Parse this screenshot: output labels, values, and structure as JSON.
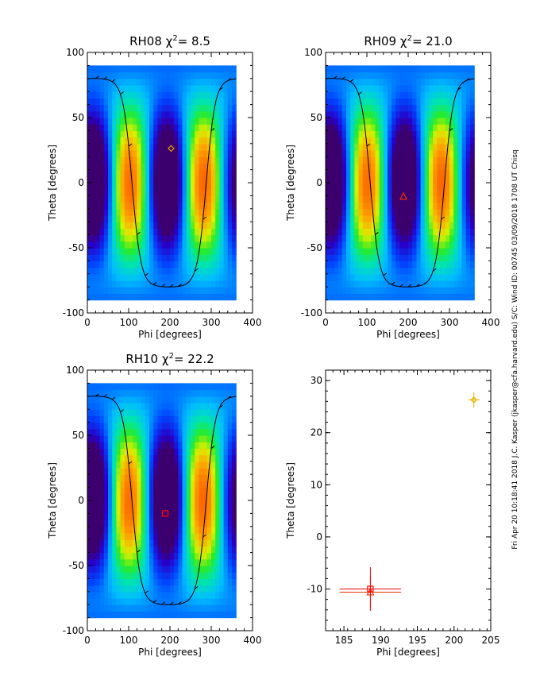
{
  "footer_text": "Fri Apr 20 10:18:41 2018  J.C. Kasper (jkasper@cfa.harvard.edu)   S/C: Wind ID: 00745 03/09/2018  1708 UT Chisq",
  "chart_data": [
    {
      "type": "heatmap",
      "title_name": "RH08",
      "chi_symbol": "χ",
      "chi_sup": "2",
      "chi_value": "=  8.5",
      "xlabel": "Phi [degrees]",
      "ylabel": "Theta [degrees]",
      "xlim": [
        0,
        400
      ],
      "ylim": [
        -100,
        100
      ],
      "xticks": [
        "0",
        "100",
        "200",
        "300",
        "400"
      ],
      "yticks": [
        "-100",
        "-50",
        "0",
        "50",
        "100"
      ],
      "map_phi_range": [
        0,
        360
      ],
      "map_theta_range": [
        -90,
        90
      ],
      "colorscale": "rainbow (blue-green-yellow-orange)",
      "curve_phase": 18,
      "field_phase": 12,
      "best_fit": {
        "phi": 202.8,
        "theta": 26.3,
        "marker": "diamond",
        "color": "#e8a000"
      }
    },
    {
      "type": "heatmap",
      "title_name": "RH09",
      "chi_symbol": "χ",
      "chi_sup": "2",
      "chi_value": "= 21.0",
      "xlabel": "Phi [degrees]",
      "ylabel": "Theta [degrees]",
      "xlim": [
        0,
        400
      ],
      "ylim": [
        -100,
        100
      ],
      "xticks": [
        "0",
        "100",
        "200",
        "300",
        "400"
      ],
      "yticks": [
        "-100",
        "-50",
        "0",
        "50",
        "100"
      ],
      "map_phi_range": [
        0,
        360
      ],
      "map_theta_range": [
        -90,
        90
      ],
      "colorscale": "rainbow (blue-green-yellow-orange)",
      "curve_phase": 18,
      "field_phase": 10,
      "best_fit": {
        "phi": 188.6,
        "theta": -10.6,
        "marker": "triangle",
        "color": "#e83000"
      }
    },
    {
      "type": "heatmap",
      "title_name": "RH10",
      "chi_symbol": "χ",
      "chi_sup": "2",
      "chi_value": "= 22.2",
      "xlabel": "Phi [degrees]",
      "ylabel": "Theta [degrees]",
      "xlim": [
        0,
        400
      ],
      "ylim": [
        -100,
        100
      ],
      "xticks": [
        "0",
        "100",
        "200",
        "300",
        "400"
      ],
      "yticks": [
        "-100",
        "-50",
        "0",
        "50",
        "100"
      ],
      "map_phi_range": [
        0,
        360
      ],
      "map_theta_range": [
        -90,
        90
      ],
      "colorscale": "rainbow (blue-green-yellow-orange)",
      "curve_phase": 18,
      "field_phase": 10,
      "best_fit": {
        "phi": 188.6,
        "theta": -10.0,
        "marker": "square",
        "color": "#ff0000"
      }
    },
    {
      "type": "scatter",
      "xlabel": "Phi [degrees]",
      "ylabel": "Theta [degrees]",
      "xlim": [
        182.5,
        205
      ],
      "ylim": [
        -18,
        32
      ],
      "xticks": [
        "185",
        "190",
        "195",
        "200",
        "205"
      ],
      "yticks": [
        "-10",
        "0",
        "10",
        "20",
        "30"
      ],
      "points": [
        {
          "phi": 202.7,
          "theta": 26.3,
          "phi_err": 0.8,
          "theta_err": 1.5,
          "marker": "diamond",
          "color": "#e8b000"
        },
        {
          "phi": 188.6,
          "theta": -10.6,
          "phi_err": 4.2,
          "theta_err": 3.0,
          "marker": "triangle",
          "color": "#e83000"
        },
        {
          "phi": 188.6,
          "theta": -10.0,
          "phi_err": 4.2,
          "theta_err": 4.2,
          "marker": "square",
          "color": "#ff0000"
        }
      ]
    }
  ]
}
